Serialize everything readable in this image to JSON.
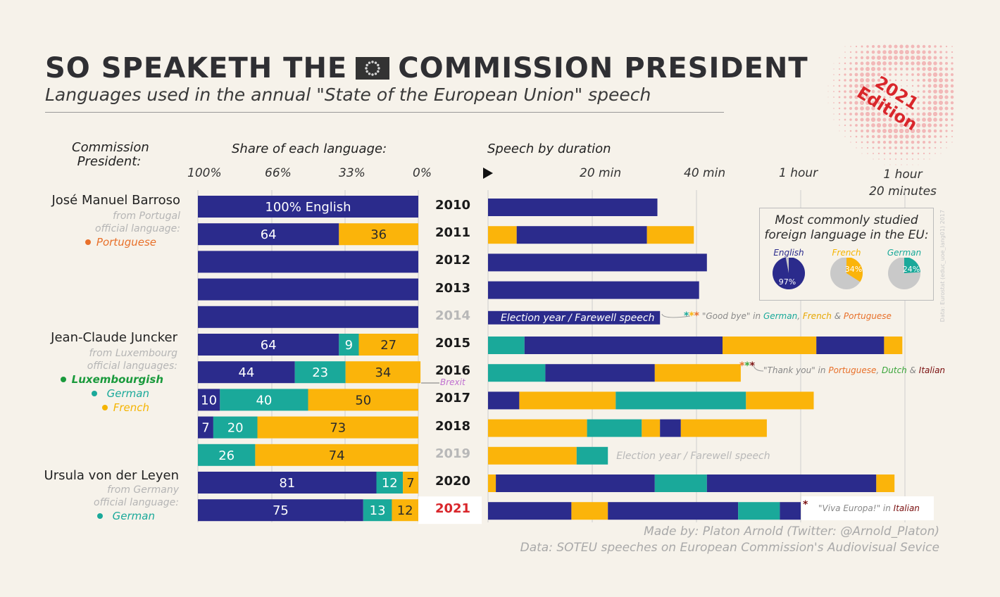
{
  "header": {
    "title_left": "SO SPEAKETH THE",
    "title_right": "COMMISSION PRESIDENT",
    "subtitle": "Languages used in the annual \"State of the European Union\" speech"
  },
  "edition": {
    "year": "2021",
    "word": "Edition"
  },
  "columns": {
    "presidents": "Commission\nPresident:",
    "share": "Share of each language:",
    "duration": "Speech by duration",
    "share_ticks": [
      "100%",
      "66%",
      "33%",
      "0%"
    ],
    "duration_ticks": [
      "20 min",
      "40 min",
      "1 hour",
      "1 hour\n20 minutes"
    ]
  },
  "presidents": [
    {
      "name": "José Manuel Barroso",
      "from": "from Portugal",
      "official": "official language:",
      "langs": [
        "Portuguese"
      ],
      "lang_colors": [
        "#e8702a"
      ]
    },
    {
      "name": "Jean-Claude Juncker",
      "from": "from Luxembourg",
      "official": "official languages:",
      "langs": [
        "Luxembourgish",
        "German",
        "French"
      ],
      "lang_colors": [
        "#1a9a3c",
        "#1aa99a",
        "#f5b400"
      ]
    },
    {
      "name": "Ursula von der Leyen",
      "from": "from Germany",
      "official": "official language:",
      "langs": [
        "German"
      ],
      "lang_colors": [
        "#1aa99a"
      ]
    }
  ],
  "colors": {
    "English": "#2b2b8c",
    "German": "#1aa99a",
    "French": "#fbb40a",
    "highlight_year": "#d9262b",
    "muted_year": "#b8b8b8"
  },
  "chart_data": {
    "type": "bar",
    "title": "Languages used in the annual \"State of the European Union\" speech",
    "share_chart": {
      "xlabel": "Share of each language:",
      "xlim": [
        100,
        0
      ],
      "rows": [
        {
          "year": "2010",
          "segments": [
            {
              "lang": "English",
              "value": 100,
              "label": "100% English"
            }
          ]
        },
        {
          "year": "2011",
          "segments": [
            {
              "lang": "English",
              "value": 64,
              "label": "64"
            },
            {
              "lang": "French",
              "value": 36,
              "label": "36"
            }
          ]
        },
        {
          "year": "2012",
          "segments": [
            {
              "lang": "English",
              "value": 100,
              "label": ""
            }
          ]
        },
        {
          "year": "2013",
          "segments": [
            {
              "lang": "English",
              "value": 100,
              "label": ""
            }
          ]
        },
        {
          "year": "2014",
          "segments": [
            {
              "lang": "English",
              "value": 100,
              "label": ""
            }
          ]
        },
        {
          "year": "2015",
          "segments": [
            {
              "lang": "English",
              "value": 64,
              "label": "64"
            },
            {
              "lang": "German",
              "value": 9,
              "label": "9"
            },
            {
              "lang": "French",
              "value": 27,
              "label": "27"
            }
          ]
        },
        {
          "year": "2016",
          "segments": [
            {
              "lang": "English",
              "value": 44,
              "label": "44"
            },
            {
              "lang": "German",
              "value": 23,
              "label": "23"
            },
            {
              "lang": "French",
              "value": 34,
              "label": "34"
            }
          ]
        },
        {
          "year": "2017",
          "segments": [
            {
              "lang": "English",
              "value": 10,
              "label": "10"
            },
            {
              "lang": "German",
              "value": 40,
              "label": "40"
            },
            {
              "lang": "French",
              "value": 50,
              "label": "50"
            }
          ]
        },
        {
          "year": "2018",
          "segments": [
            {
              "lang": "English",
              "value": 7,
              "label": "7"
            },
            {
              "lang": "German",
              "value": 20,
              "label": "20"
            },
            {
              "lang": "French",
              "value": 73,
              "label": "73"
            }
          ]
        },
        {
          "year": "2019",
          "segments": [
            {
              "lang": "German",
              "value": 26,
              "label": "26"
            },
            {
              "lang": "French",
              "value": 74,
              "label": "74"
            }
          ]
        },
        {
          "year": "2020",
          "segments": [
            {
              "lang": "English",
              "value": 81,
              "label": "81"
            },
            {
              "lang": "German",
              "value": 12,
              "label": "12"
            },
            {
              "lang": "French",
              "value": 7,
              "label": "7"
            }
          ]
        },
        {
          "year": "2021",
          "segments": [
            {
              "lang": "English",
              "value": 75,
              "label": "75"
            },
            {
              "lang": "German",
              "value": 13,
              "label": "13"
            },
            {
              "lang": "French",
              "value": 12,
              "label": "12"
            }
          ]
        }
      ]
    },
    "duration_chart": {
      "xlabel": "Speech by duration",
      "xunit": "minutes",
      "xlim": [
        0,
        82
      ],
      "xticks": [
        20,
        40,
        60,
        80
      ],
      "rows": [
        {
          "year": "2010",
          "segments": [
            {
              "lang": "English",
              "start": 0,
              "end": 32.5
            }
          ]
        },
        {
          "year": "2011",
          "segments": [
            {
              "lang": "French",
              "start": 0,
              "end": 5.5
            },
            {
              "lang": "English",
              "start": 5.5,
              "end": 30.5
            },
            {
              "lang": "French",
              "start": 30.5,
              "end": 39.5
            }
          ]
        },
        {
          "year": "2012",
          "segments": [
            {
              "lang": "English",
              "start": 0,
              "end": 42
            }
          ]
        },
        {
          "year": "2013",
          "segments": [
            {
              "lang": "English",
              "start": 0,
              "end": 40.5
            }
          ]
        },
        {
          "year": "2014",
          "segments": [
            {
              "lang": "English",
              "start": 0,
              "end": 33
            }
          ],
          "inner_label": "Election year / Farewell speech"
        },
        {
          "year": "2015",
          "segments": [
            {
              "lang": "German",
              "start": 0,
              "end": 7
            },
            {
              "lang": "English",
              "start": 7,
              "end": 45
            },
            {
              "lang": "French",
              "start": 45,
              "end": 63
            },
            {
              "lang": "English",
              "start": 63,
              "end": 76
            },
            {
              "lang": "French",
              "start": 76,
              "end": 79.5
            }
          ]
        },
        {
          "year": "2016",
          "segments": [
            {
              "lang": "German",
              "start": 0,
              "end": 11
            },
            {
              "lang": "English",
              "start": 11,
              "end": 32
            },
            {
              "lang": "French",
              "start": 32,
              "end": 48.5
            }
          ]
        },
        {
          "year": "2017",
          "segments": [
            {
              "lang": "English",
              "start": 0,
              "end": 6
            },
            {
              "lang": "French",
              "start": 6,
              "end": 24.5
            },
            {
              "lang": "German",
              "start": 24.5,
              "end": 49.5
            },
            {
              "lang": "French",
              "start": 49.5,
              "end": 62.5
            }
          ]
        },
        {
          "year": "2018",
          "segments": [
            {
              "lang": "French",
              "start": 0,
              "end": 19
            },
            {
              "lang": "German",
              "start": 19,
              "end": 29.5
            },
            {
              "lang": "French",
              "start": 29.5,
              "end": 33
            },
            {
              "lang": "English",
              "start": 33,
              "end": 37
            },
            {
              "lang": "French",
              "start": 37,
              "end": 53.5
            }
          ]
        },
        {
          "year": "2019",
          "segments": [
            {
              "lang": "French",
              "start": 0,
              "end": 17
            },
            {
              "lang": "German",
              "start": 17,
              "end": 23
            }
          ],
          "after_label": "Election year / Farewell speech"
        },
        {
          "year": "2020",
          "segments": [
            {
              "lang": "French",
              "start": 0,
              "end": 1.5
            },
            {
              "lang": "English",
              "start": 1.5,
              "end": 32
            },
            {
              "lang": "German",
              "start": 32,
              "end": 42
            },
            {
              "lang": "English",
              "start": 42,
              "end": 74.5
            },
            {
              "lang": "French",
              "start": 74.5,
              "end": 78
            }
          ]
        },
        {
          "year": "2021",
          "segments": [
            {
              "lang": "English",
              "start": 0,
              "end": 16
            },
            {
              "lang": "French",
              "start": 16,
              "end": 23
            },
            {
              "lang": "English",
              "start": 23,
              "end": 48
            },
            {
              "lang": "German",
              "start": 48,
              "end": 56
            },
            {
              "lang": "English",
              "start": 56,
              "end": 60
            }
          ]
        }
      ]
    },
    "inset_pies": {
      "title": "Most commonly studied\nforeign language in the EU:",
      "source": "Data: Eurostat (educ_uoe_lang01) 2017",
      "pies": [
        {
          "name": "English",
          "value": 97,
          "label": "97%",
          "color": "#2b2b8c"
        },
        {
          "name": "French",
          "value": 34,
          "label": "34%",
          "color": "#fbb40a"
        },
        {
          "name": "German",
          "value": 24,
          "label": "24%",
          "color": "#1aa99a"
        }
      ]
    }
  },
  "annotations": {
    "brexit": "Brexit",
    "note_2014": {
      "stars": "***",
      "pre": "\"Good bye\" in ",
      "l1": "German",
      "sep1": ", ",
      "l2": "French",
      "sep2": " & ",
      "l3": "Portuguese"
    },
    "note_2016": {
      "stars": "***",
      "pre": "\"Thank you\" in ",
      "l1": "Portuguese",
      "sep1": ", ",
      "l2": "Dutch",
      "sep2": " & ",
      "l3": "Italian"
    },
    "note_2021": {
      "stars": "*",
      "pre": "\"Viva Europa!\" in ",
      "l1": "Italian"
    }
  },
  "credits": {
    "made_by": "Made by: Platon Arnold (Twitter: @Arnold_Platon)",
    "data": "Data: SOTEU speeches on European Commission's Audiovisual Sevice"
  }
}
